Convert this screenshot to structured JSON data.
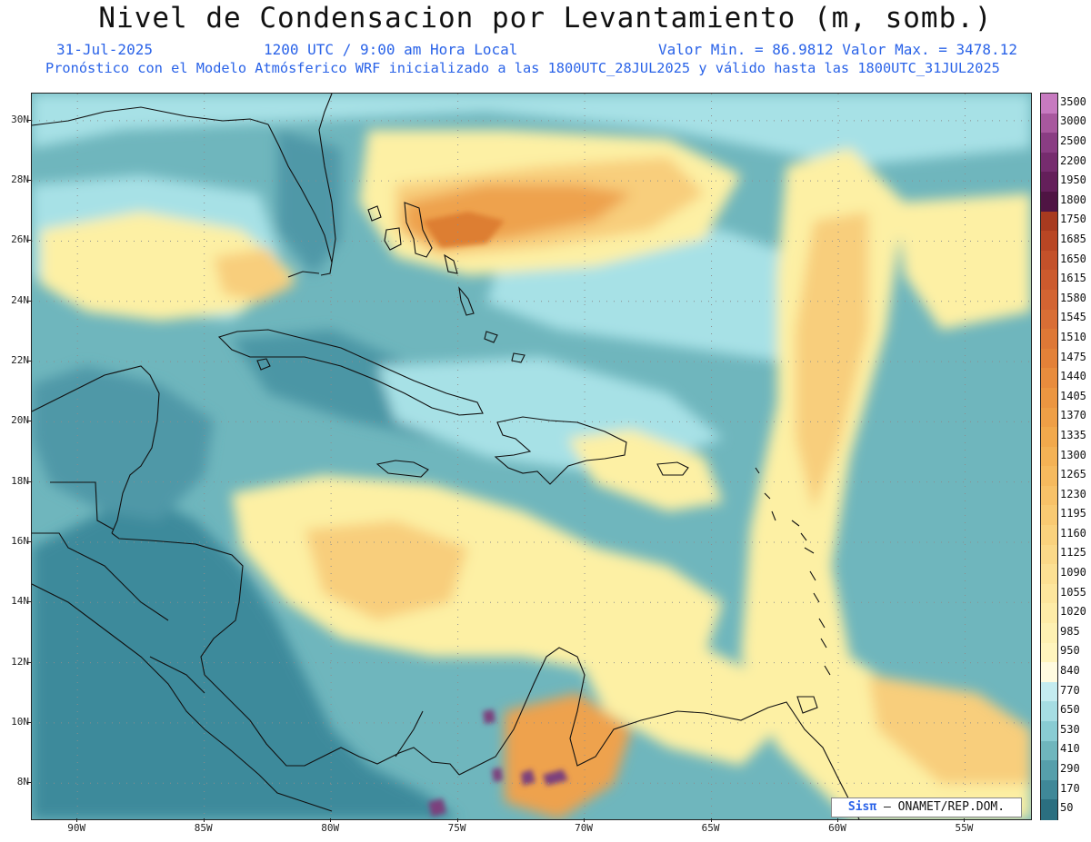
{
  "header": {
    "title": "Nivel de Condensacion por Levantamiento (m, somb.)",
    "date": "31-Jul-2025",
    "time": "1200 UTC / 9:00 am Hora Local",
    "min_max": "Valor Min. = 86.9812  Valor Max. = 3478.12",
    "forecast": "Pronóstico con el Modelo Atmósferico WRF inicializado a las 1800UTC_28JUL2025 y válido hasta las  1800UTC_31JUL2025"
  },
  "map": {
    "lat_labels": [
      "30N",
      "28N",
      "26N",
      "24N",
      "22N",
      "20N",
      "18N",
      "16N",
      "14N",
      "12N",
      "10N",
      "8N"
    ],
    "lat_values": [
      30,
      28,
      26,
      24,
      22,
      20,
      18,
      16,
      14,
      12,
      10,
      8
    ],
    "lon_labels": [
      "90W",
      "85W",
      "80W",
      "75W",
      "70W",
      "65W",
      "60W",
      "55W"
    ],
    "lon_values": [
      -90,
      -85,
      -80,
      -75,
      -70,
      -65,
      -60,
      -55
    ],
    "lat_range": [
      6.8,
      30.9
    ],
    "lon_range": [
      -91.8,
      -52.4
    ],
    "colors": {
      "ocean_base": "#6fb6bd",
      "light_teal": "#a7e1e6",
      "yellow": "#fdf0a4",
      "light_orange": "#f8ce7c",
      "orange": "#eea24e",
      "dark_orange": "#dd7e33",
      "dark_teal": "#3d8a9b",
      "purple": "#7c3f7d",
      "coast": "#111111",
      "grid": "#8d8d8d"
    }
  },
  "colorbar": {
    "levels": [
      "3500",
      "3000",
      "2500",
      "2200",
      "1950",
      "1800",
      "1750",
      "1685",
      "1650",
      "1615",
      "1580",
      "1545",
      "1510",
      "1475",
      "1440",
      "1405",
      "1370",
      "1335",
      "1300",
      "1265",
      "1230",
      "1195",
      "1160",
      "1125",
      "1090",
      "1055",
      "1020",
      "985",
      "950",
      "840",
      "770",
      "650",
      "530",
      "410",
      "290",
      "170",
      "50"
    ],
    "colors": [
      "#c77ac0",
      "#a8589e",
      "#8a3d83",
      "#762c6e",
      "#641f5a",
      "#4f1443",
      "#a83a1f",
      "#b94624",
      "#c4512a",
      "#cc5a2d",
      "#d36432",
      "#d96e35",
      "#de7836",
      "#e38138",
      "#e88c3d",
      "#ec9641",
      "#ef9f46",
      "#f2a94c",
      "#f4b255",
      "#f6ba5e",
      "#f8c268",
      "#f9ca72",
      "#fad27d",
      "#fbd988",
      "#fce093",
      "#fde69d",
      "#feeca7",
      "#fef1b2",
      "#fff5bd",
      "#fffbe0",
      "#c4ecf0",
      "#a6dde3",
      "#89ccd3",
      "#6fb6bd",
      "#569fab",
      "#3f8898",
      "#2b6f80"
    ]
  },
  "credit": {
    "brand": "Sisπ",
    "text": " – ONAMET/REP.DOM."
  }
}
